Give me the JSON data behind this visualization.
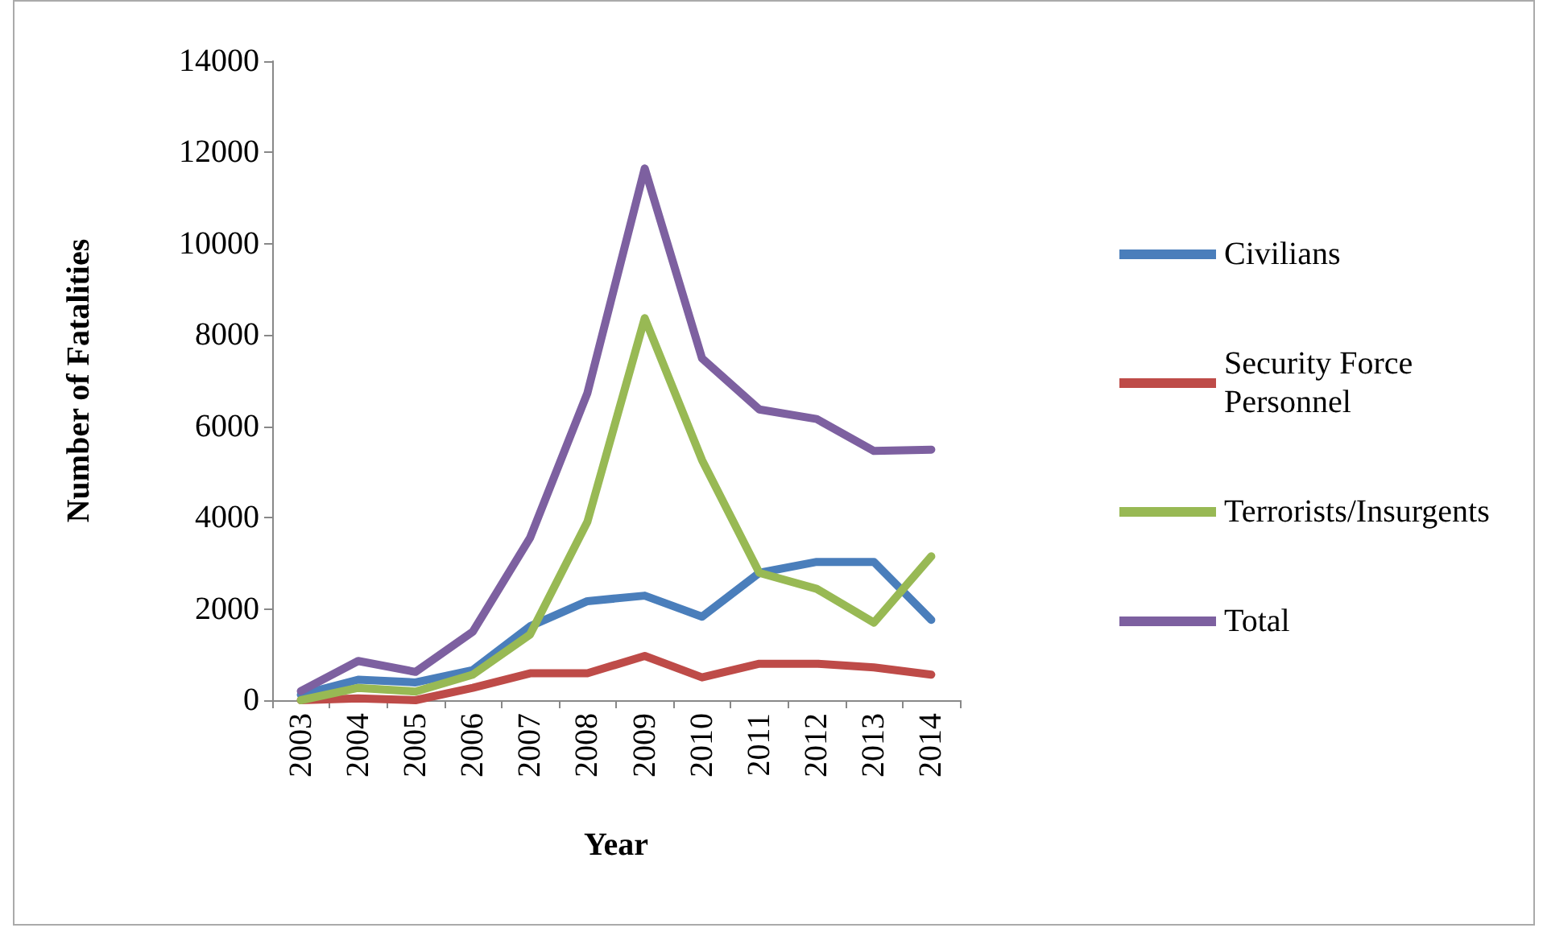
{
  "chart_data": {
    "type": "line",
    "xlabel": "Year",
    "ylabel": "Number of Fatalities",
    "categories": [
      "2003",
      "2004",
      "2005",
      "2006",
      "2007",
      "2008",
      "2009",
      "2010",
      "2011",
      "2012",
      "2013",
      "2014"
    ],
    "series": [
      {
        "name": "Civilians",
        "color": "#4a7ebb",
        "values": [
          120,
          450,
          390,
          660,
          1620,
          2170,
          2290,
          1830,
          2790,
          3030,
          3030,
          1760
        ]
      },
      {
        "name": "Security Force Personnel",
        "color": "#be4b48",
        "values": [
          0,
          40,
          0,
          270,
          590,
          590,
          970,
          500,
          800,
          800,
          720,
          560
        ]
      },
      {
        "name": "Terrorists/Insurgents",
        "color": "#98b954",
        "values": [
          0,
          270,
          190,
          560,
          1440,
          3910,
          8370,
          5260,
          2790,
          2440,
          1700,
          3150
        ]
      },
      {
        "name": "Total",
        "color": "#7d60a0",
        "values": [
          200,
          860,
          620,
          1500,
          3560,
          6730,
          11650,
          7490,
          6370,
          6160,
          5460,
          5490
        ]
      }
    ],
    "ylim": [
      0,
      14000
    ],
    "yticks": [
      0,
      2000,
      4000,
      6000,
      8000,
      10000,
      12000,
      14000
    ],
    "grid": false,
    "legend": "right",
    "marker": "none",
    "line_style": "solid"
  }
}
